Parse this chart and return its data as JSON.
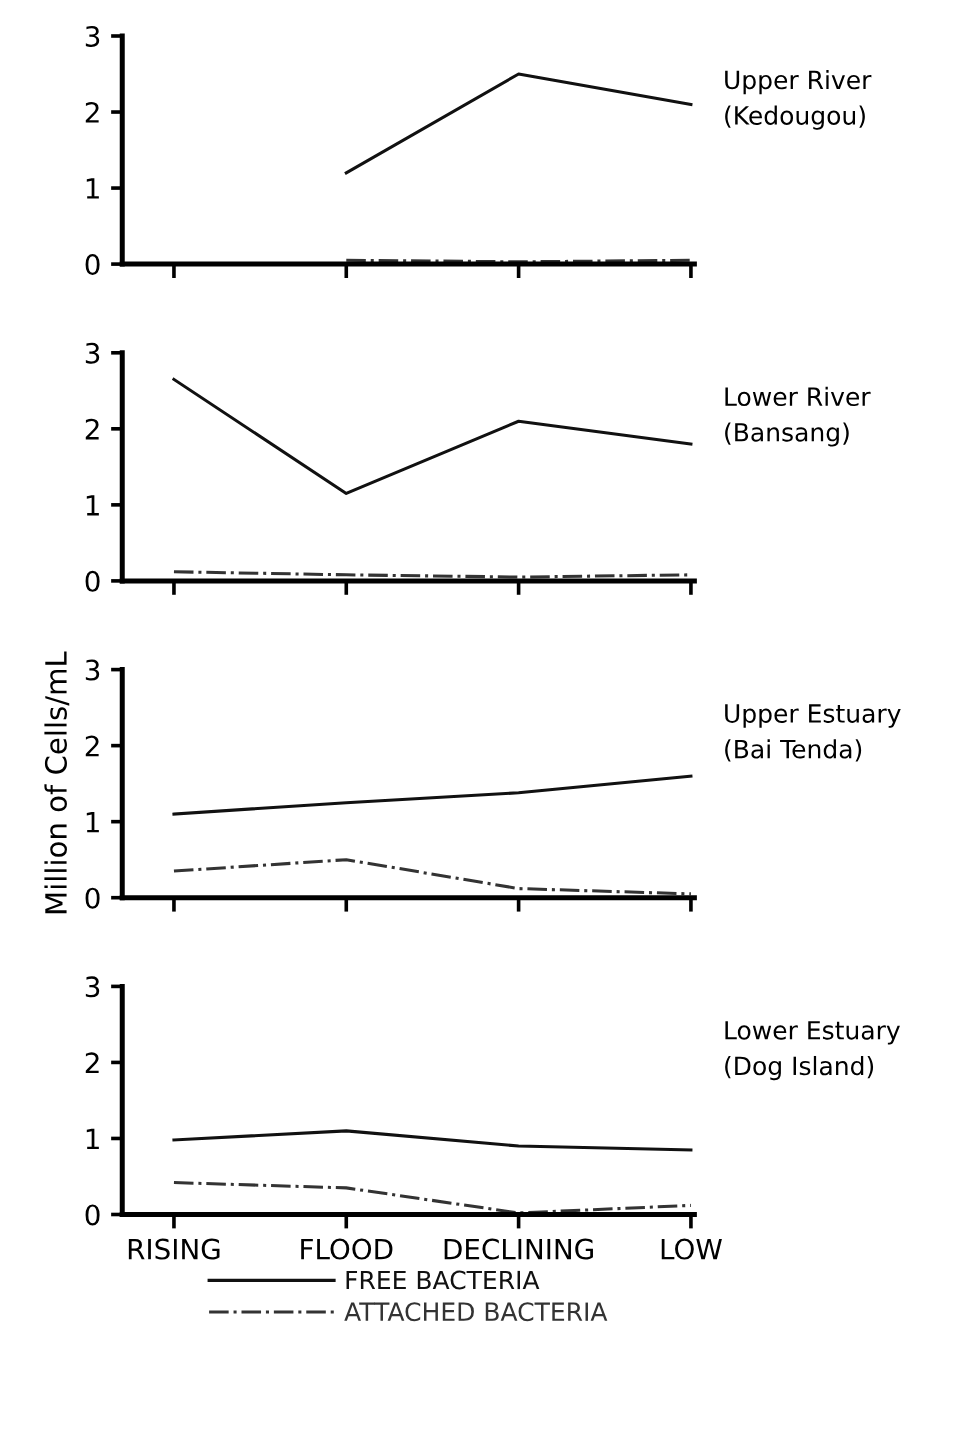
{
  "chart_data": [
    {
      "type": "line",
      "categories": [
        null,
        null,
        null,
        null
      ],
      "ylim": [
        0,
        3
      ],
      "yticks": [
        0,
        1,
        2,
        3
      ],
      "tick_labels": "y",
      "grid": false,
      "legend": false,
      "annotations": [
        "Upper River\n(Kedougou)"
      ],
      "series": [
        {
          "color": "#111111",
          "line_style": "solid",
          "values": [
            null,
            1.2,
            2.5,
            2.1
          ]
        },
        {
          "color": "#333333",
          "line_style": "dashdot",
          "values": [
            null,
            0.05,
            0.03,
            0.05
          ]
        }
      ]
    },
    {
      "type": "line",
      "categories": [
        null,
        null,
        null,
        null
      ],
      "ylim": [
        0,
        3
      ],
      "yticks": [
        0,
        1,
        2,
        3
      ],
      "tick_labels": "y",
      "grid": false,
      "legend": false,
      "annotations": [
        "Lower River\n(Bansang)"
      ],
      "series": [
        {
          "color": "#111111",
          "line_style": "solid",
          "values": [
            2.65,
            1.15,
            2.1,
            1.8
          ]
        },
        {
          "color": "#333333",
          "line_style": "dashdot",
          "values": [
            0.12,
            0.08,
            0.05,
            0.08
          ]
        }
      ]
    },
    {
      "type": "line",
      "categories": [
        null,
        null,
        null,
        null
      ],
      "ylim": [
        0,
        3
      ],
      "yticks": [
        0,
        1,
        2,
        3
      ],
      "tick_labels": "y",
      "grid": false,
      "legend": false,
      "ylabel": "Million of Cells/mL",
      "annotations": [
        "Upper Estuary\n(Bai Tenda)"
      ],
      "series": [
        {
          "color": "#111111",
          "line_style": "solid",
          "values": [
            1.1,
            1.25,
            1.38,
            1.6
          ]
        },
        {
          "color": "#333333",
          "line_style": "dashdot",
          "values": [
            0.35,
            0.5,
            0.12,
            0.05
          ]
        }
      ]
    },
    {
      "type": "line",
      "categories": [
        "RISING",
        "FLOOD",
        "DECLINING",
        "LOW"
      ],
      "ylim": [
        0,
        3
      ],
      "yticks": [
        0,
        1,
        2,
        3
      ],
      "grid": false,
      "legend": "bottom",
      "annotations": [
        "Lower Estuary\n(Dog Island)"
      ],
      "series": [
        {
          "name": "FREE BACTERIA",
          "color": "#111111",
          "line_style": "solid",
          "values": [
            0.98,
            1.1,
            0.9,
            0.85
          ]
        },
        {
          "name": "ATTACHED BACTERIA",
          "color": "#333333",
          "line_style": "dashdot",
          "values": [
            0.42,
            0.35,
            0.02,
            0.12
          ]
        }
      ]
    }
  ]
}
